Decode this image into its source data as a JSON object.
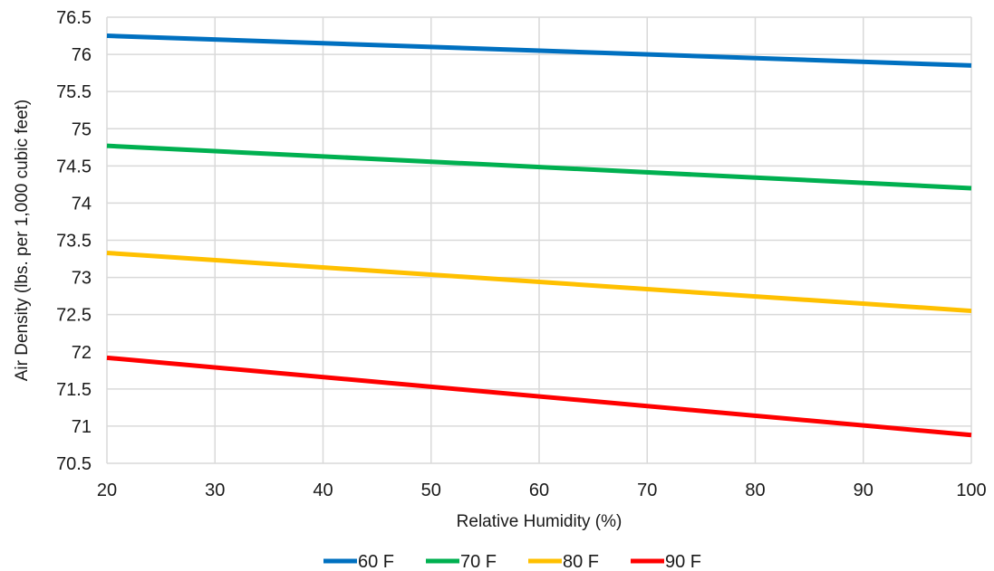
{
  "chart_data": {
    "type": "line",
    "title": "",
    "xlabel": "Relative Humidity (%)",
    "ylabel": "Air Density (lbs. per 1,000 cubic feet)",
    "x": [
      20,
      100
    ],
    "xlim": [
      20,
      100
    ],
    "ylim": [
      70.5,
      76.5
    ],
    "xticks": [
      "20",
      "30",
      "40",
      "50",
      "60",
      "70",
      "80",
      "90",
      "100"
    ],
    "yticks": [
      "70.5",
      "71",
      "71.5",
      "72",
      "72.5",
      "73",
      "73.5",
      "74",
      "74.5",
      "75",
      "75.5",
      "76",
      "76.5"
    ],
    "grid": true,
    "legend_position": "bottom",
    "series": [
      {
        "name": "60 F",
        "color": "#0070C0",
        "values": [
          76.25,
          75.85
        ]
      },
      {
        "name": "70 F",
        "color": "#00B050",
        "values": [
          74.77,
          74.2
        ]
      },
      {
        "name": "80 F",
        "color": "#FFC000",
        "values": [
          73.33,
          72.55
        ]
      },
      {
        "name": "90 F",
        "color": "#FF0000",
        "values": [
          71.92,
          70.88
        ]
      }
    ]
  }
}
